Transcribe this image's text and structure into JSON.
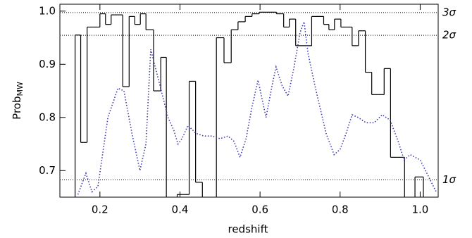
{
  "chart_data": {
    "type": "histogram",
    "xlabel": "redshift",
    "ylabel": "Prob",
    "ylabel_subscript": "MW",
    "xlim": [
      0.1,
      1.045
    ],
    "ylim": [
      0.65,
      1.013
    ],
    "xticks": [
      0.2,
      0.4,
      0.6,
      0.8,
      {
        "value": 1,
        "label": "1.0"
      }
    ],
    "yticks": [
      0.7,
      0.8,
      0.9,
      {
        "value": 1,
        "label": "1.0"
      }
    ],
    "levels": [
      {
        "value": 0.9973,
        "label": "3σ"
      },
      {
        "value": 0.9545,
        "label": "2σ"
      },
      {
        "value": 0.6827,
        "label": "1σ"
      }
    ],
    "histogram": {
      "color": "#000000",
      "bins": [
        0.138,
        0.152,
        0.168,
        0.184,
        0.2,
        0.214,
        0.228,
        0.243,
        0.257,
        0.273,
        0.287,
        0.301,
        0.315,
        0.334,
        0.352,
        0.366,
        0.379,
        0.393,
        0.409,
        0.423,
        0.439,
        0.456,
        0.474,
        0.491,
        0.51,
        0.528,
        0.545,
        0.563,
        0.58,
        0.598,
        0.615,
        0.641,
        0.659,
        0.673,
        0.689,
        0.729,
        0.759,
        0.772,
        0.786,
        0.802,
        0.816,
        0.83,
        0.846,
        0.863,
        0.879,
        0.895,
        0.91,
        0.926,
        0.944,
        0.961,
        0.973,
        0.987,
        1.008
      ],
      "values": [
        0.955,
        0.753,
        0.97,
        0.97,
        0.995,
        0.975,
        0.993,
        0.993,
        0.858,
        0.99,
        0.975,
        0.995,
        0.965,
        0.85,
        0.913,
        null,
        null,
        0.655,
        0.655,
        0.868,
        0.678,
        null,
        null,
        0.95,
        0.903,
        0.965,
        0.98,
        0.99,
        0.995,
        0.998,
        0.998,
        0.995,
        0.97,
        0.985,
        0.935,
        0.99,
        0.975,
        0.965,
        0.985,
        0.97,
        0.97,
        0.935,
        0.963,
        0.885,
        0.843,
        0.843,
        0.892,
        0.725,
        0.725,
        null,
        null,
        0.688
      ]
    },
    "curve": {
      "color": "#3a3aaa",
      "x": [
        0.145,
        0.165,
        0.18,
        0.195,
        0.22,
        0.245,
        0.26,
        0.28,
        0.3,
        0.315,
        0.327,
        0.35,
        0.37,
        0.385,
        0.395,
        0.405,
        0.42,
        0.44,
        0.46,
        0.48,
        0.5,
        0.52,
        0.535,
        0.55,
        0.565,
        0.58,
        0.595,
        0.605,
        0.615,
        0.63,
        0.64,
        0.655,
        0.67,
        0.685,
        0.7,
        0.71,
        0.72,
        0.74,
        0.765,
        0.785,
        0.8,
        0.815,
        0.83,
        0.845,
        0.865,
        0.885,
        0.905,
        0.925,
        0.945,
        0.96,
        0.975,
        1.0,
        1.02,
        1.04
      ],
      "values": [
        0.655,
        0.695,
        0.66,
        0.67,
        0.8,
        0.855,
        0.85,
        0.77,
        0.7,
        0.75,
        0.928,
        0.86,
        0.8,
        0.775,
        0.75,
        0.76,
        0.785,
        0.77,
        0.765,
        0.765,
        0.76,
        0.765,
        0.755,
        0.725,
        0.76,
        0.82,
        0.87,
        0.835,
        0.8,
        0.86,
        0.895,
        0.86,
        0.84,
        0.895,
        0.96,
        0.98,
        0.92,
        0.85,
        0.77,
        0.73,
        0.74,
        0.77,
        0.805,
        0.8,
        0.79,
        0.79,
        0.805,
        0.795,
        0.755,
        0.72,
        0.73,
        0.72,
        0.69,
        0.66
      ]
    }
  }
}
